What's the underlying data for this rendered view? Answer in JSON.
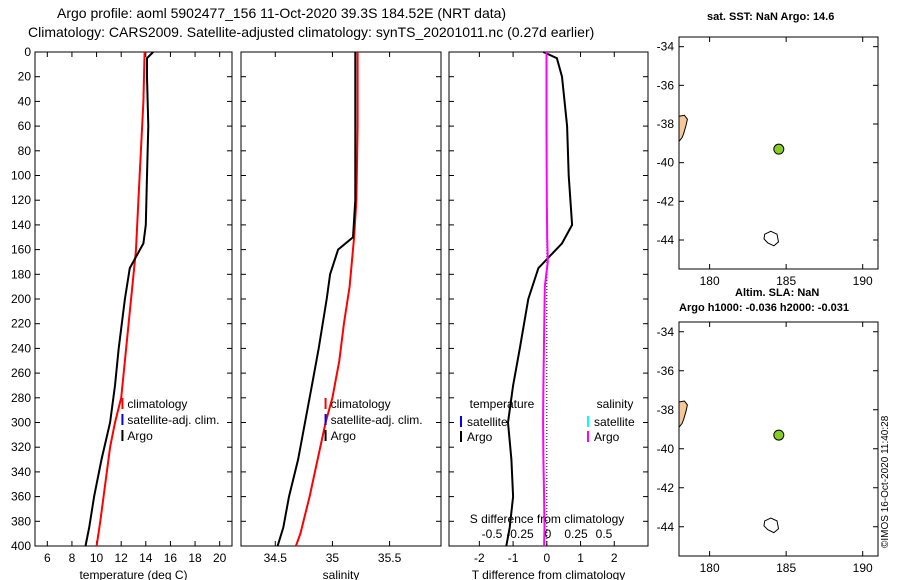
{
  "titles": {
    "line1": "Argo profile: aoml 5902477_156 11-Oct-2020 39.3S 184.52E (NRT data)",
    "line2": "Climatology: CARS2009. Satellite-adjusted climatology: synTS_20201011.nc (0.27d earlier)"
  },
  "map_titles": {
    "top": "sat. SST: NaN Argo: 14.6",
    "bottom1": "Altim. SLA: NaN",
    "bottom2": "Argo h1000: -0.036 h2000: -0.031"
  },
  "timestamp": "©IMOS 16-Oct-2020 11:40:28",
  "colors": {
    "argo": "#000000",
    "climatology": "#ff0000",
    "satellite": "#0000ff",
    "salinity_diff": "#ff00ff",
    "salinity_sat": "#00ffff",
    "marker": "#88cc22",
    "land": "#f5c89a"
  },
  "chart_data": [
    {
      "type": "line",
      "name": "temperature",
      "xlabel": "temperature (deg C)",
      "ylim": [
        0,
        400
      ],
      "xlim": [
        5,
        21
      ],
      "xticks": [
        6,
        8,
        10,
        12,
        14,
        16,
        18,
        20
      ],
      "xtick_labels": [
        "6",
        "8",
        "10",
        "12",
        "14",
        "16",
        "18",
        "20"
      ],
      "yticks": [
        0,
        20,
        40,
        60,
        80,
        100,
        120,
        140,
        160,
        180,
        200,
        220,
        240,
        260,
        280,
        300,
        320,
        340,
        360,
        380,
        400
      ],
      "ytick_labels": [
        "0",
        "20",
        "40",
        "60",
        "80",
        "100",
        "120",
        "140",
        "160",
        "180",
        "200",
        "220",
        "240",
        "260",
        "280",
        "300",
        "320",
        "340",
        "360",
        "380",
        "400"
      ],
      "legend": [
        "climatology",
        "satellite-adj. clim.",
        "Argo"
      ],
      "series": [
        {
          "name": "climatology",
          "color": "#ff0000",
          "x": [
            13.9,
            13.8,
            13.6,
            13.4,
            13.2,
            12.9,
            12.6,
            12.3,
            12.0,
            11.5,
            11.1,
            10.7,
            10.3,
            10.0
          ],
          "y": [
            0,
            40,
            80,
            120,
            160,
            190,
            220,
            250,
            280,
            300,
            320,
            350,
            380,
            400
          ]
        },
        {
          "name": "Argo",
          "color": "#000000",
          "x": [
            14.6,
            14.1,
            14.1,
            14.2,
            14.1,
            14.0,
            13.8,
            12.7,
            12.3,
            11.8,
            11.5,
            11.1,
            10.4,
            9.8,
            9.4,
            9.1
          ],
          "y": [
            0,
            5,
            20,
            60,
            100,
            140,
            155,
            175,
            200,
            240,
            270,
            300,
            330,
            360,
            385,
            400
          ]
        }
      ]
    },
    {
      "type": "line",
      "name": "salinity",
      "xlabel": "salinity",
      "ylim": [
        0,
        400
      ],
      "xlim": [
        34.2,
        35.95
      ],
      "xticks": [
        34.5,
        35,
        35.5
      ],
      "xtick_labels": [
        "34.5",
        "35",
        "35.5"
      ],
      "legend": [
        "climatology",
        "satellite-adj. clim.",
        "Argo"
      ],
      "series": [
        {
          "name": "climatology",
          "color": "#ff0000",
          "x": [
            35.22,
            35.22,
            35.21,
            35.19,
            35.15,
            35.1,
            35.06,
            35.0,
            34.94,
            34.87,
            34.8,
            34.72,
            34.68
          ],
          "y": [
            0,
            60,
            120,
            150,
            190,
            220,
            250,
            280,
            300,
            330,
            360,
            390,
            400
          ]
        },
        {
          "name": "Argo",
          "color": "#000000",
          "x": [
            35.2,
            35.2,
            35.2,
            35.18,
            35.05,
            34.98,
            34.95,
            34.88,
            34.82,
            34.76,
            34.7,
            34.62,
            34.57,
            34.52
          ],
          "y": [
            0,
            60,
            120,
            150,
            160,
            180,
            200,
            240,
            270,
            300,
            330,
            360,
            385,
            400
          ]
        }
      ]
    },
    {
      "type": "line",
      "name": "difference",
      "xlabel": "T difference from climatology",
      "top_axis_label": "S difference from climatology",
      "ylim": [
        0,
        400
      ],
      "xlim": [
        -2.9,
        3.0
      ],
      "xticks": [
        -2,
        -1,
        0,
        1,
        2
      ],
      "xtick_labels": [
        "-2",
        "-1",
        "0",
        "1",
        "2"
      ],
      "top_ticks": [
        -0.5,
        -0.25,
        0,
        0.25,
        0.5
      ],
      "top_tick_labels": [
        "-0.5",
        "-0.25",
        "0",
        "0.25",
        "0.5"
      ],
      "legend_left": {
        "title": "temperature",
        "items": [
          "satellite",
          "Argo"
        ]
      },
      "legend_right": {
        "title": "salinity",
        "items": [
          "satellite",
          "Argo"
        ]
      },
      "series": [
        {
          "name": "Argo T diff",
          "color": "#000000",
          "x": [
            -0.1,
            0.3,
            0.45,
            0.6,
            0.65,
            0.75,
            0.45,
            -0.25,
            -0.55,
            -0.8,
            -1.0,
            -1.15,
            -1.05,
            -1.0,
            -1.1,
            -1.2
          ],
          "y": [
            0,
            5,
            20,
            60,
            100,
            140,
            155,
            175,
            200,
            240,
            270,
            300,
            330,
            360,
            385,
            400
          ]
        },
        {
          "name": "Argo S diff",
          "color": "#ff00ff",
          "x": [
            -0.01,
            -0.01,
            0.0,
            0.01,
            0.03,
            -0.06,
            -0.08,
            -0.1,
            -0.11,
            -0.1,
            -0.08,
            -0.07,
            -0.08
          ],
          "y": [
            0,
            60,
            120,
            150,
            170,
            190,
            230,
            270,
            300,
            330,
            360,
            385,
            400
          ]
        }
      ]
    },
    {
      "type": "scatter",
      "name": "map_sst",
      "title": "sat. SST: NaN Argo: 14.6",
      "xlim": [
        178,
        191
      ],
      "ylim": [
        -45.5,
        -33.5
      ],
      "xticks": [
        180,
        185,
        190
      ],
      "xtick_labels": [
        "180",
        "185",
        "190"
      ],
      "yticks": [
        -34,
        -36,
        -38,
        -40,
        -42,
        -44
      ],
      "ytick_labels": [
        "-34",
        "-36",
        "-38",
        "-40",
        "-42",
        "-44"
      ],
      "points": [
        {
          "x": 184.52,
          "y": -39.3
        }
      ]
    },
    {
      "type": "scatter",
      "name": "map_sla",
      "title": "Altim. SLA: NaN",
      "xlim": [
        178,
        191
      ],
      "ylim": [
        -45.5,
        -33.5
      ],
      "xticks": [
        180,
        185,
        190
      ],
      "xtick_labels": [
        "180",
        "185",
        "190"
      ],
      "yticks": [
        -34,
        -36,
        -38,
        -40,
        -42,
        -44
      ],
      "ytick_labels": [
        "-34",
        "-36",
        "-38",
        "-40",
        "-42",
        "-44"
      ],
      "points": [
        {
          "x": 184.52,
          "y": -39.3
        }
      ]
    }
  ]
}
